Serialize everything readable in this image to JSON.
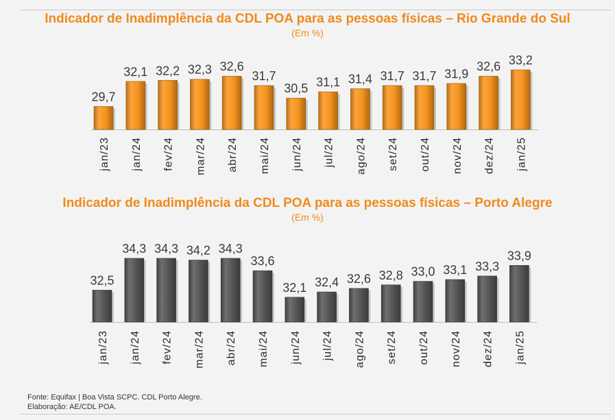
{
  "footer": {
    "source": "Fonte: Equifax | Boa Vista SCPC. CDL Porto Alegre.",
    "credit": "Elaboração: AE/CDL POA."
  },
  "chart_data": [
    {
      "type": "bar",
      "title": "Indicador de Inadimplência da CDL POA para as pessoas físicas – Rio Grande do Sul",
      "subtitle": "(Em %)",
      "categories": [
        "jan/23",
        "jan/24",
        "fev/24",
        "mar/24",
        "abr/24",
        "mai/24",
        "jun/24",
        "jul/24",
        "ago/24",
        "set/24",
        "out/24",
        "nov/24",
        "dez/24",
        "jan/25"
      ],
      "values": [
        29.7,
        32.1,
        32.2,
        32.3,
        32.6,
        31.7,
        30.5,
        31.1,
        31.4,
        31.7,
        31.7,
        31.9,
        32.6,
        33.2
      ],
      "value_labels": [
        "29,7",
        "32,1",
        "32,2",
        "32,3",
        "32,6",
        "31,7",
        "30,5",
        "31,1",
        "31,4",
        "31,7",
        "31,7",
        "31,9",
        "32,6",
        "33,2"
      ],
      "color": "#f7941d",
      "grid": false
    },
    {
      "type": "bar",
      "title": "Indicador de Inadimplência da CDL POA para as pessoas físicas – Porto Alegre",
      "subtitle": "(Em %)",
      "categories": [
        "jan/23",
        "jan/24",
        "fev/24",
        "mar/24",
        "abr/24",
        "mai/24",
        "jun/24",
        "jul/24",
        "ago/24",
        "set/24",
        "out/24",
        "nov/24",
        "dez/24",
        "jan/25"
      ],
      "values": [
        32.5,
        34.3,
        34.3,
        34.2,
        34.3,
        33.6,
        32.1,
        32.4,
        32.6,
        32.8,
        33.0,
        33.1,
        33.3,
        33.9
      ],
      "value_labels": [
        "32,5",
        "34,3",
        "34,3",
        "34,2",
        "34,3",
        "33,6",
        "32,1",
        "32,4",
        "32,6",
        "32,8",
        "33,0",
        "33,1",
        "33,3",
        "33,9"
      ],
      "color": "#555555",
      "grid": false
    }
  ]
}
